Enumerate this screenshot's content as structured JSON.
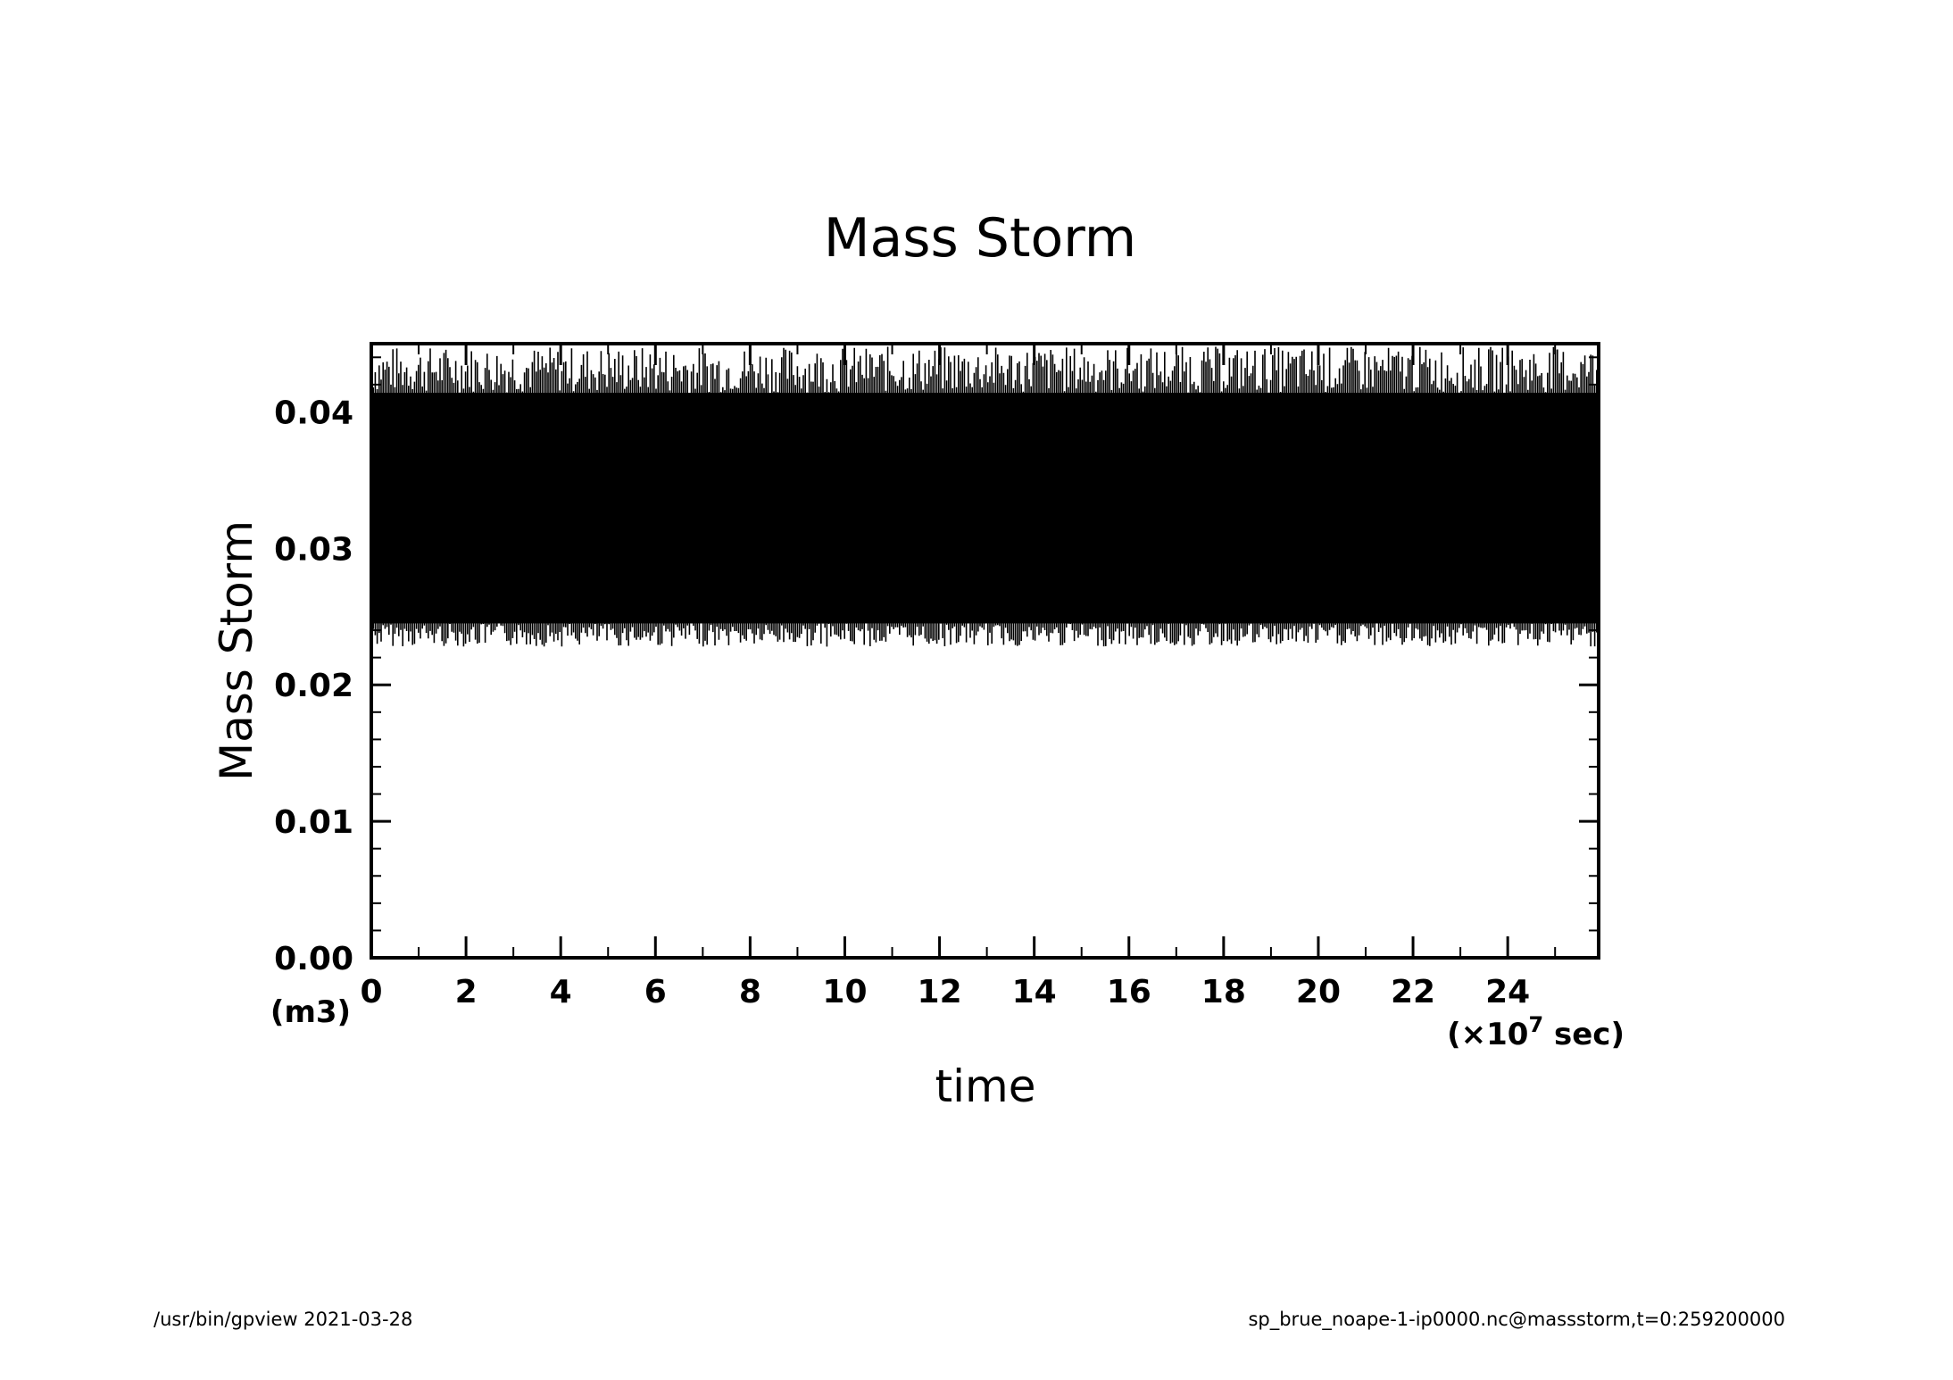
{
  "chart_data": {
    "type": "line",
    "title": "Mass Storm",
    "xlabel": "time",
    "ylabel": "Mass Storm",
    "x_unit_label": "(×10",
    "x_unit_exp": "7",
    "x_unit_suffix": " sec)",
    "y_unit_label": "(m3)",
    "xlim": [
      0,
      25.92
    ],
    "ylim": [
      0,
      0.045
    ],
    "x_ticks": [
      "0",
      "2",
      "4",
      "6",
      "8",
      "10",
      "12",
      "14",
      "16",
      "18",
      "20",
      "22",
      "24"
    ],
    "x_tick_values": [
      0,
      2,
      4,
      6,
      8,
      10,
      12,
      14,
      16,
      18,
      20,
      22,
      24
    ],
    "y_ticks": [
      "0.00",
      "0.01",
      "0.02",
      "0.03",
      "0.04"
    ],
    "y_tick_values": [
      0,
      0.01,
      0.02,
      0.03,
      0.04
    ],
    "series": [
      {
        "oscillation_min": 0.0228,
        "oscillation_max": 0.0448,
        "dense_min": 0.0245,
        "dense_max": 0.0414,
        "x_start": 0,
        "x_end": 25.92
      }
    ],
    "grid": false,
    "color": "#000000"
  },
  "footer": {
    "left": "/usr/bin/gpview   2021-03-28",
    "right": "sp_brue_noape-1-ip0000.nc@massstorm,t=0:259200000"
  }
}
